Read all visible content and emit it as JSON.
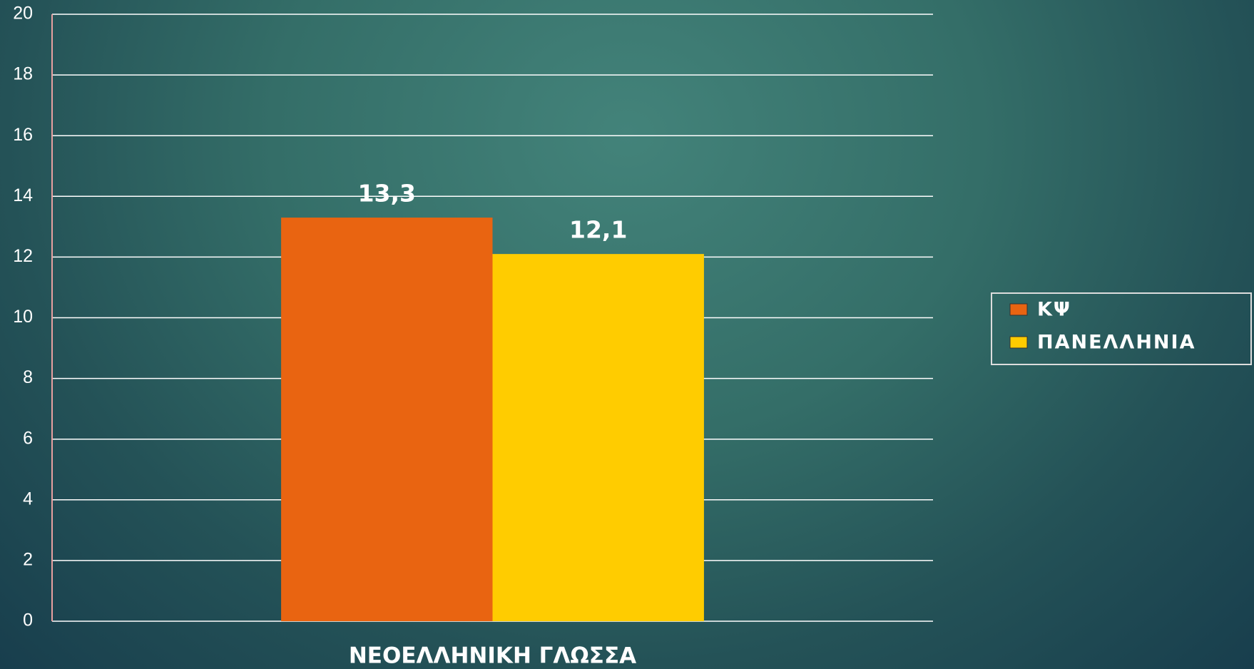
{
  "chart_data": {
    "type": "bar",
    "categories": [
      "ΝΕΟΕΛΛΗΝΙΚΗ ΓΛΩΣΣΑ"
    ],
    "series": [
      {
        "name": "ΚΨ",
        "color": "#e96411",
        "values": [
          13.3
        ],
        "value_labels": [
          "13,3"
        ]
      },
      {
        "name": "ΠΑΝΕΛΛΗΝΙΑ",
        "color": "#ffcc00",
        "values": [
          12.1
        ],
        "value_labels": [
          "12,1"
        ]
      }
    ],
    "ylim": [
      0,
      20
    ],
    "yticks": [
      0,
      2,
      4,
      6,
      8,
      10,
      12,
      14,
      16,
      18,
      20
    ],
    "grid": true,
    "legend": "right"
  }
}
